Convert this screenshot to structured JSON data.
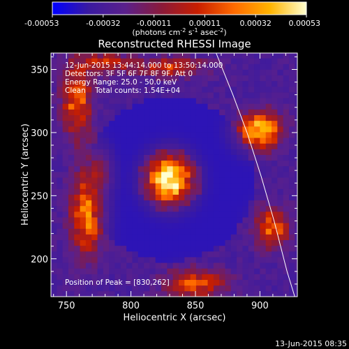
{
  "chart_data": {
    "type": "heatmap",
    "title": "Reconstructed RHESSI Image",
    "xlabel": "Heliocentric X (arcsec)",
    "ylabel": "Heliocentric Y (arcsec)",
    "xlim": [
      738,
      929
    ],
    "ylim": [
      170,
      363
    ],
    "xticks": [
      750,
      800,
      850,
      900
    ],
    "yticks": [
      200,
      250,
      300,
      350
    ],
    "colorbar": {
      "min": -0.00053,
      "max": 0.00053,
      "tick_labels": [
        "-0.00053",
        "-0.00032",
        "-0.00011",
        "0.00011",
        "0.00032",
        "0.00053"
      ],
      "unit_label_parts": [
        "(photons cm",
        "-2",
        " s",
        "-1",
        " asec",
        "-2",
        ")"
      ],
      "colormap": [
        "#0000ff",
        "#3a1aa0",
        "#5a208c",
        "#8a1a3a",
        "#c81e00",
        "#ff6a00",
        "#ffb400",
        "#ffffd0"
      ]
    },
    "annotations": [
      "12-Jun-2015 13:44:14.000 to 13:50:14.000",
      "Detectors: 3F 5F 6F 7F 8F 9F, Att 0",
      "Energy Range: 25.0 - 50.0 keV",
      "Clean    Total counts: 1.54E+04"
    ],
    "peak_label": "Position of Peak = [830,262]",
    "peak": [
      830,
      262
    ],
    "peak_value": 0.00053,
    "sources": [
      {
        "x": 830,
        "y": 263,
        "sx": 11,
        "sy": 12,
        "amp": 1.0
      },
      {
        "x": 758,
        "y": 325,
        "sx": 8,
        "sy": 20,
        "amp": 0.55
      },
      {
        "x": 766,
        "y": 235,
        "sx": 9,
        "sy": 22,
        "amp": 0.6
      },
      {
        "x": 775,
        "y": 270,
        "sx": 7,
        "sy": 12,
        "amp": 0.3
      },
      {
        "x": 780,
        "y": 355,
        "sx": 14,
        "sy": 6,
        "amp": 0.4
      },
      {
        "x": 832,
        "y": 352,
        "sx": 18,
        "sy": 5,
        "amp": 0.45
      },
      {
        "x": 900,
        "y": 302,
        "sx": 11,
        "sy": 10,
        "amp": 0.8
      },
      {
        "x": 910,
        "y": 225,
        "sx": 9,
        "sy": 11,
        "amp": 0.55
      },
      {
        "x": 850,
        "y": 180,
        "sx": 16,
        "sy": 8,
        "amp": 0.5
      }
    ],
    "limb_curve": [
      [
        866,
        363
      ],
      [
        879,
        330
      ],
      [
        890,
        300
      ],
      [
        901,
        265
      ],
      [
        911,
        230
      ],
      [
        921,
        190
      ],
      [
        927,
        170
      ]
    ]
  },
  "footer_date": "13-Jun-2015 08:35"
}
